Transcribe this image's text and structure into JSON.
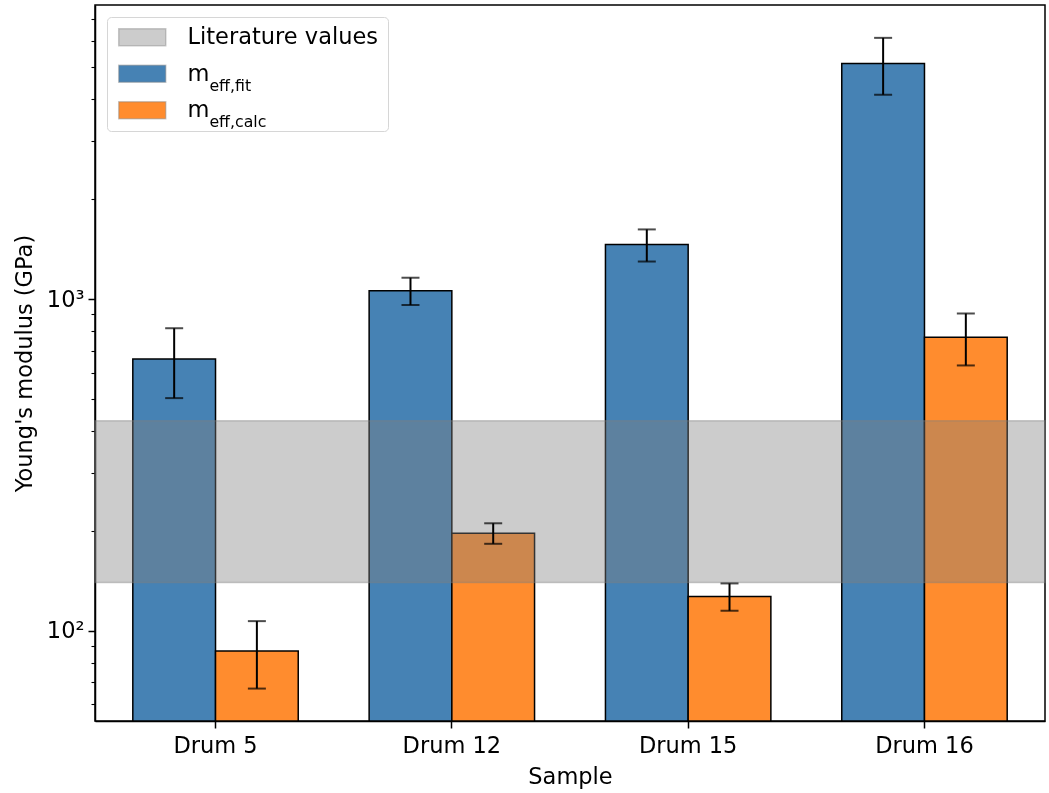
{
  "chart_data": {
    "type": "bar",
    "xlabel": "Sample",
    "ylabel": "Young's modulus (GPa)",
    "categories": [
      "Drum 5",
      "Drum 12",
      "Drum 15",
      "Drum 16"
    ],
    "series": [
      {
        "name": "m$_{eff,fit}$",
        "color": "#4682b4",
        "values": [
          660,
          1060,
          1460,
          5130
        ],
        "errors": [
          157,
          100,
          162,
          1000
        ]
      },
      {
        "name": "m$_{eff,calc}$",
        "color": "#ff8c2e",
        "values": [
          87,
          197,
          127,
          768
        ],
        "errors": [
          20,
          14,
          12,
          137
        ]
      }
    ],
    "log": "y",
    "ylim": [
      53.5,
      7700
    ],
    "yticks": [
      {
        "value": 60,
        "label": null
      },
      {
        "value": 70,
        "label": null
      },
      {
        "value": 80,
        "label": null
      },
      {
        "value": 90,
        "label": null
      },
      {
        "value": 100,
        "label": "10²"
      },
      {
        "value": 200,
        "label": null
      },
      {
        "value": 300,
        "label": null
      },
      {
        "value": 400,
        "label": null
      },
      {
        "value": 500,
        "label": null
      },
      {
        "value": 600,
        "label": null
      },
      {
        "value": 700,
        "label": null
      },
      {
        "value": 800,
        "label": null
      },
      {
        "value": 900,
        "label": null
      },
      {
        "value": 1000,
        "label": "10³"
      },
      {
        "value": 2000,
        "label": null
      },
      {
        "value": 3000,
        "label": null
      },
      {
        "value": 4000,
        "label": null
      },
      {
        "value": 5000,
        "label": null
      },
      {
        "value": 6000,
        "label": null
      },
      {
        "value": 7000,
        "label": null
      }
    ],
    "bands": [
      {
        "axis": "y",
        "from": 140,
        "to": 430,
        "label": "Literature values",
        "color": "#808080"
      }
    ],
    "legend": "top left",
    "grid": false
  }
}
